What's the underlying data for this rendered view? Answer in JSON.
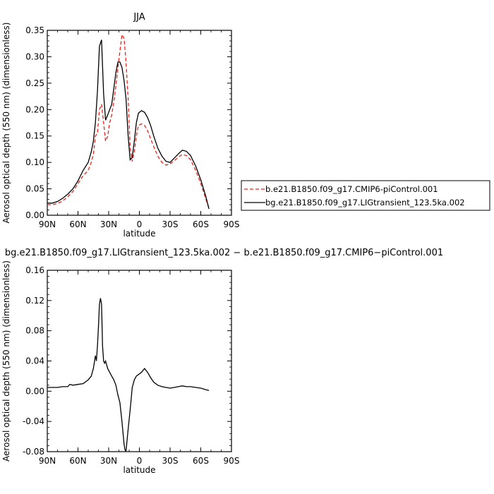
{
  "chart_data": [
    {
      "type": "line",
      "title": "JJA",
      "xlabel": "latitude",
      "ylabel": "Aerosol optical depth (550 nm) (dimensionless)",
      "x_ticks": [
        {
          "value": 90,
          "label": "90N"
        },
        {
          "value": 60,
          "label": "60N"
        },
        {
          "value": 30,
          "label": "30N"
        },
        {
          "value": 0,
          "label": "0"
        },
        {
          "value": -30,
          "label": "30S"
        },
        {
          "value": -60,
          "label": "60S"
        },
        {
          "value": -90,
          "label": "90S"
        }
      ],
      "xlim": [
        90,
        -90
      ],
      "ylim": [
        0,
        0.35
      ],
      "y_ticks": [
        {
          "value": 0,
          "label": "0.00"
        },
        {
          "value": 0.05,
          "label": "0.05"
        },
        {
          "value": 0.1,
          "label": "0.10"
        },
        {
          "value": 0.15,
          "label": "0.15"
        },
        {
          "value": 0.2,
          "label": "0.20"
        },
        {
          "value": 0.25,
          "label": "0.25"
        },
        {
          "value": 0.3,
          "label": "0.30"
        },
        {
          "value": 0.35,
          "label": "0.35"
        }
      ],
      "legend_position": "right",
      "series": [
        {
          "name": "b.e21.B1850.f09_g17.CMIP6-piControl.001",
          "color": "#e8251f",
          "dash": "dashed",
          "x": [
            90,
            85,
            80,
            75,
            70,
            65,
            60,
            55,
            50,
            47,
            45,
            43,
            41,
            39,
            37,
            35,
            33,
            31,
            29,
            27,
            25,
            23,
            21,
            19,
            17,
            15,
            13,
            11,
            9,
            7,
            5,
            3,
            1,
            -2,
            -5,
            -8,
            -11,
            -14,
            -18,
            -22,
            -26,
            -30,
            -34,
            -38,
            -42,
            -46,
            -50,
            -55,
            -60,
            -65,
            -68
          ],
          "y": [
            0.02,
            0.02,
            0.022,
            0.027,
            0.035,
            0.045,
            0.06,
            0.075,
            0.085,
            0.1,
            0.115,
            0.15,
            0.155,
            0.2,
            0.21,
            0.175,
            0.14,
            0.15,
            0.175,
            0.19,
            0.215,
            0.245,
            0.28,
            0.31,
            0.342,
            0.335,
            0.29,
            0.22,
            0.13,
            0.102,
            0.12,
            0.15,
            0.17,
            0.173,
            0.17,
            0.16,
            0.145,
            0.13,
            0.112,
            0.1,
            0.095,
            0.097,
            0.103,
            0.11,
            0.115,
            0.113,
            0.105,
            0.085,
            0.06,
            0.03,
            0.013
          ]
        },
        {
          "name": "bg.e21.B1850.f09_g17.LIGtransient_123.5ka.002",
          "color": "#000000",
          "dash": "solid",
          "x": [
            90,
            85,
            80,
            75,
            70,
            65,
            60,
            55,
            50,
            47,
            45,
            43,
            41,
            39,
            37,
            35,
            33,
            31,
            29,
            27,
            25,
            23,
            21,
            19,
            17,
            15,
            13,
            11,
            9,
            7,
            5,
            3,
            1,
            -2,
            -5,
            -8,
            -11,
            -14,
            -18,
            -22,
            -26,
            -30,
            -34,
            -38,
            -42,
            -46,
            -50,
            -55,
            -60,
            -65,
            -68
          ],
          "y": [
            0.023,
            0.023,
            0.026,
            0.032,
            0.04,
            0.05,
            0.065,
            0.085,
            0.1,
            0.12,
            0.14,
            0.175,
            0.235,
            0.32,
            0.332,
            0.23,
            0.18,
            0.19,
            0.2,
            0.21,
            0.24,
            0.27,
            0.29,
            0.29,
            0.28,
            0.255,
            0.22,
            0.15,
            0.105,
            0.11,
            0.14,
            0.175,
            0.193,
            0.198,
            0.195,
            0.185,
            0.17,
            0.15,
            0.127,
            0.112,
            0.102,
            0.1,
            0.108,
            0.116,
            0.123,
            0.121,
            0.113,
            0.093,
            0.067,
            0.035,
            0.012
          ]
        }
      ]
    },
    {
      "type": "line",
      "title": "bg.e21.B1850.f09_g17.LIGtransient_123.5ka.002 − b.e21.B1850.f09_g17.CMIP6−piControl.001",
      "xlabel": "latitude",
      "ylabel": "Aerosol optical depth (550 nm) (dimensionless)",
      "x_ticks": [
        {
          "value": 90,
          "label": "90N"
        },
        {
          "value": 60,
          "label": "60N"
        },
        {
          "value": 30,
          "label": "30N"
        },
        {
          "value": 0,
          "label": "0"
        },
        {
          "value": -30,
          "label": "30S"
        },
        {
          "value": -60,
          "label": "60S"
        },
        {
          "value": -90,
          "label": "90S"
        }
      ],
      "xlim": [
        90,
        -90
      ],
      "ylim": [
        -0.08,
        0.16
      ],
      "y_ticks": [
        {
          "value": -0.08,
          "label": "-0.08"
        },
        {
          "value": -0.04,
          "label": "-0.04"
        },
        {
          "value": 0,
          "label": "0.00"
        },
        {
          "value": 0.04,
          "label": "0.04"
        },
        {
          "value": 0.08,
          "label": "0.08"
        },
        {
          "value": 0.12,
          "label": "0.12"
        },
        {
          "value": 0.16,
          "label": "0.16"
        }
      ],
      "series": [
        {
          "color": "#000000",
          "dash": "solid",
          "x": [
            90,
            85,
            80,
            75,
            70,
            68,
            65,
            60,
            55,
            50,
            47,
            45,
            43,
            42,
            41,
            40,
            39,
            38,
            37,
            36,
            35,
            34,
            33,
            31,
            29,
            27,
            25,
            23,
            21,
            19,
            17,
            15,
            14,
            13,
            11,
            9,
            7,
            5,
            3,
            1,
            -2,
            -5,
            -8,
            -11,
            -14,
            -18,
            -22,
            -26,
            -30,
            -34,
            -38,
            -42,
            -46,
            -50,
            -55,
            -60,
            -65,
            -68
          ],
          "y": [
            0.005,
            0.005,
            0.005,
            0.006,
            0.006,
            0.009,
            0.008,
            0.009,
            0.01,
            0.015,
            0.02,
            0.03,
            0.047,
            0.04,
            0.06,
            0.085,
            0.115,
            0.123,
            0.115,
            0.06,
            0.04,
            0.037,
            0.04,
            0.03,
            0.025,
            0.02,
            0.015,
            0.008,
            -0.005,
            -0.015,
            -0.04,
            -0.07,
            -0.078,
            -0.079,
            -0.05,
            -0.025,
            0.005,
            0.015,
            0.02,
            0.022,
            0.025,
            0.03,
            0.025,
            0.018,
            0.012,
            0.008,
            0.006,
            0.005,
            0.004,
            0.005,
            0.006,
            0.007,
            0.006,
            0.006,
            0.005,
            0.004,
            0.002,
            0.001
          ]
        }
      ]
    }
  ]
}
